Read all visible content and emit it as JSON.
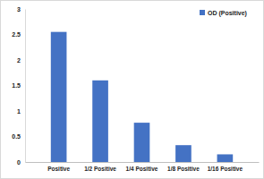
{
  "chart_data": {
    "type": "bar",
    "categories": [
      "Positive",
      "1/2 Positive",
      "1/4 Positive",
      "1/8 Positive",
      "1/16 Positive"
    ],
    "series": [
      {
        "name": "OD (Positive)",
        "color": "#4472c4",
        "values": [
          2.55,
          1.6,
          0.77,
          0.33,
          0.15
        ]
      }
    ],
    "ylim": [
      0,
      3
    ],
    "yticks": [
      0,
      0.5,
      1,
      1.5,
      2,
      2.5,
      3
    ],
    "grid": false,
    "legend": "top-right"
  }
}
